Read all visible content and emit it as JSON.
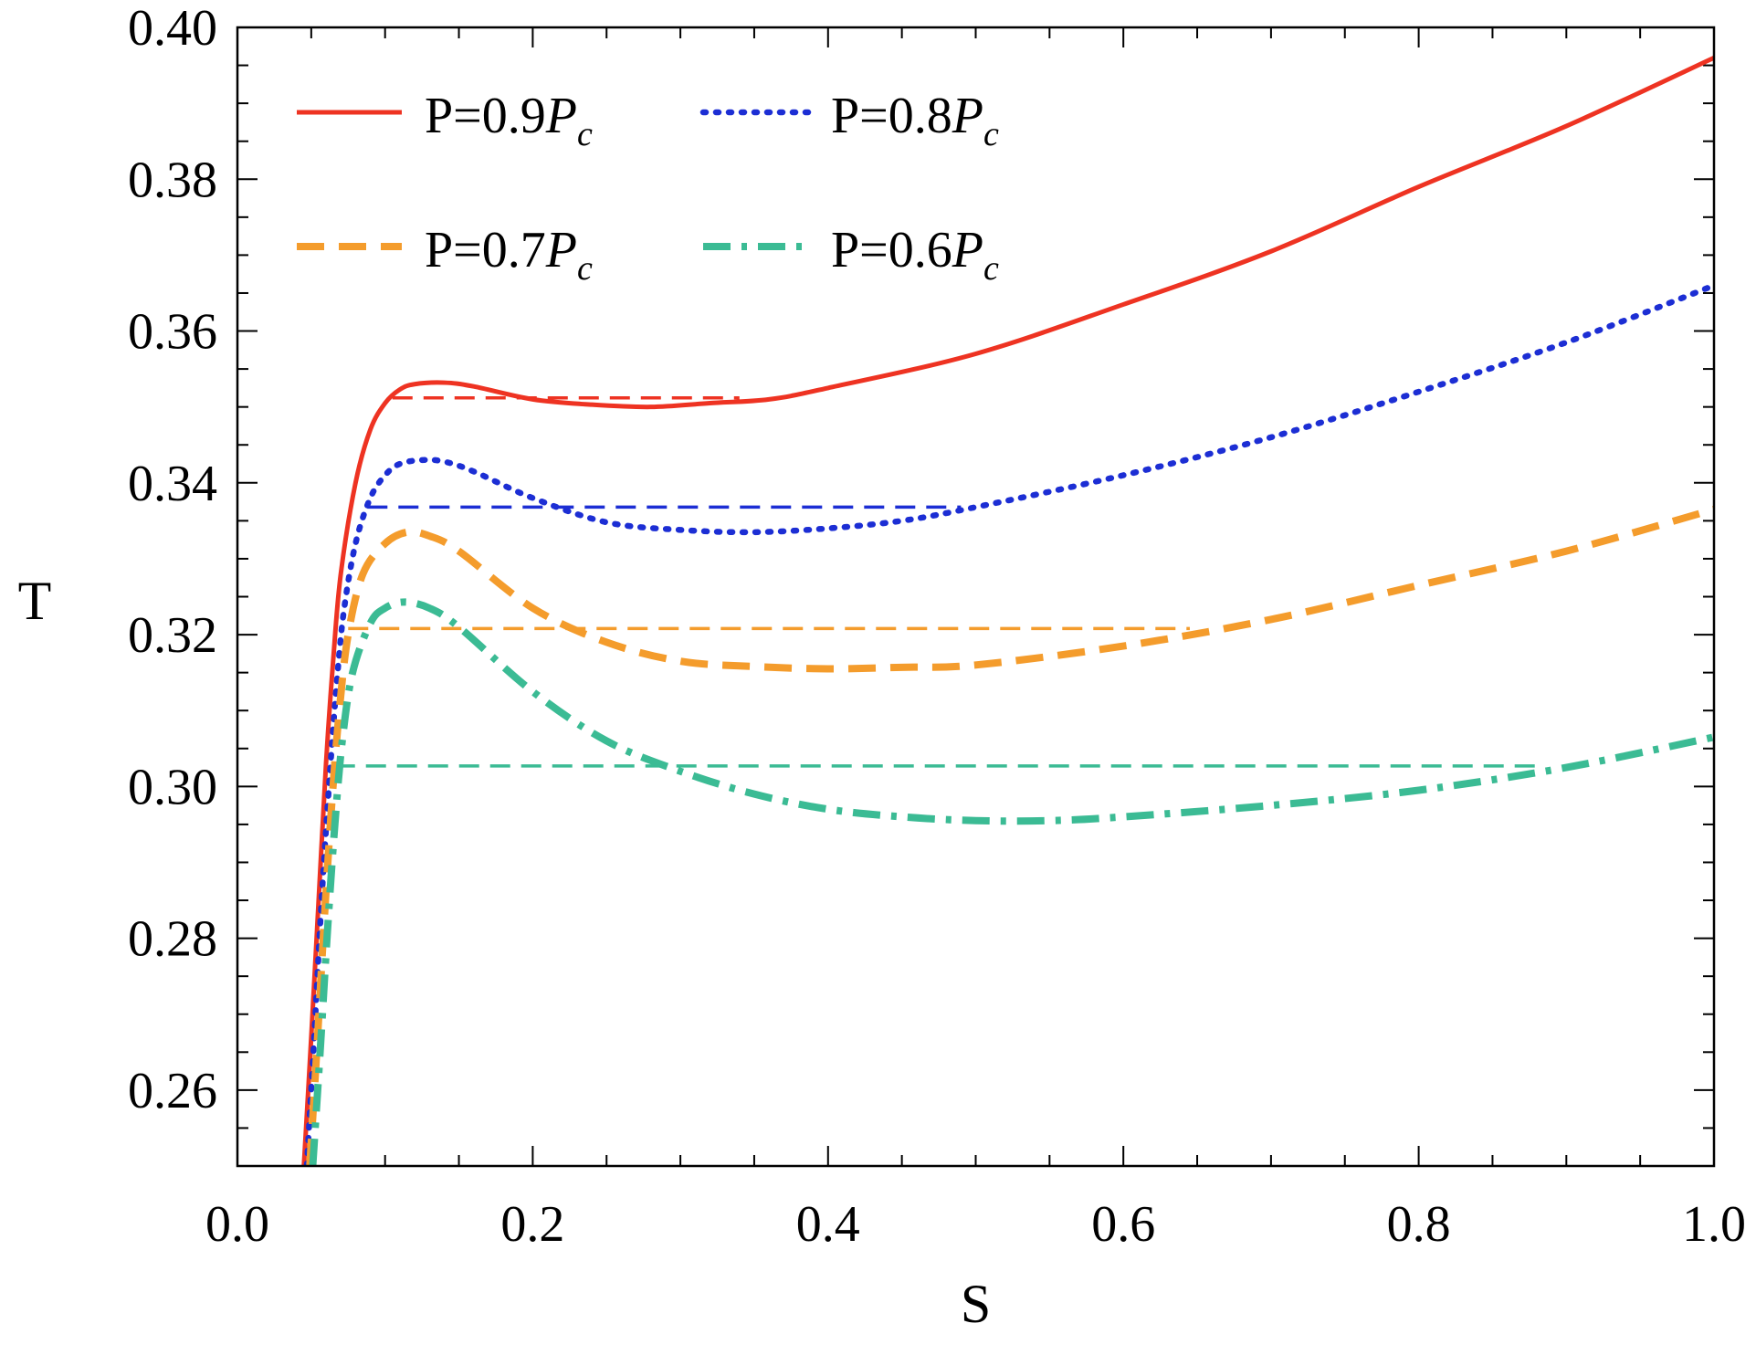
{
  "chart_data": {
    "type": "line",
    "title": "",
    "xlabel": "S",
    "ylabel": "T",
    "xlim": [
      0.0,
      1.0
    ],
    "ylim": [
      0.25,
      0.4
    ],
    "xticks": [
      "0.0",
      "0.2",
      "0.4",
      "0.6",
      "0.8",
      "1.0"
    ],
    "yticks": [
      "0.26",
      "0.28",
      "0.30",
      "0.32",
      "0.34",
      "0.36",
      "0.38",
      "0.40"
    ],
    "legend_position": "top-left",
    "series": [
      {
        "name": "P=0.9P_c",
        "label_main": "P=0.9",
        "label_p": "P",
        "label_sub": "c",
        "color": "#ee3322",
        "style": "solid",
        "x": [
          0.045,
          0.05,
          0.055,
          0.06,
          0.065,
          0.07,
          0.08,
          0.09,
          0.1,
          0.11,
          0.12,
          0.14,
          0.16,
          0.2,
          0.24,
          0.28,
          0.32,
          0.36,
          0.4,
          0.5,
          0.6,
          0.7,
          0.8,
          0.9,
          1.0
        ],
        "y": [
          0.25,
          0.267,
          0.285,
          0.303,
          0.317,
          0.328,
          0.34,
          0.347,
          0.3505,
          0.3523,
          0.353,
          0.3532,
          0.3527,
          0.351,
          0.3503,
          0.35,
          0.3505,
          0.351,
          0.3525,
          0.357,
          0.3635,
          0.3705,
          0.379,
          0.387,
          0.396
        ]
      },
      {
        "name": "P=0.8P_c",
        "label_main": "P=0.8",
        "label_p": "P",
        "label_sub": "c",
        "color": "#1c2ed4",
        "style": "dotted",
        "x": [
          0.047,
          0.052,
          0.057,
          0.062,
          0.067,
          0.072,
          0.08,
          0.09,
          0.1,
          0.11,
          0.125,
          0.14,
          0.16,
          0.2,
          0.25,
          0.3,
          0.35,
          0.4,
          0.45,
          0.5,
          0.6,
          0.7,
          0.8,
          0.9,
          1.0
        ],
        "y": [
          0.25,
          0.267,
          0.285,
          0.3,
          0.313,
          0.323,
          0.332,
          0.338,
          0.341,
          0.3425,
          0.343,
          0.3428,
          0.3415,
          0.338,
          0.3348,
          0.3338,
          0.3335,
          0.334,
          0.335,
          0.3368,
          0.341,
          0.346,
          0.352,
          0.3585,
          0.366
        ]
      },
      {
        "name": "P=0.7P_c",
        "label_main": "P=0.7",
        "label_p": "P",
        "label_sub": "c",
        "color": "#f49c2c",
        "style": "dashed",
        "x": [
          0.049,
          0.054,
          0.059,
          0.064,
          0.069,
          0.075,
          0.085,
          0.1,
          0.115,
          0.13,
          0.15,
          0.2,
          0.25,
          0.3,
          0.35,
          0.4,
          0.45,
          0.5,
          0.6,
          0.7,
          0.8,
          0.9,
          1.0
        ],
        "y": [
          0.25,
          0.266,
          0.283,
          0.298,
          0.31,
          0.32,
          0.328,
          0.332,
          0.3335,
          0.333,
          0.331,
          0.3235,
          0.319,
          0.3165,
          0.3158,
          0.3155,
          0.3157,
          0.316,
          0.3185,
          0.322,
          0.3265,
          0.331,
          0.3365
        ]
      },
      {
        "name": "P=0.6P_c",
        "label_main": "P=0.6",
        "label_p": "P",
        "label_sub": "c",
        "color": "#3bbb94",
        "style": "dashdot",
        "x": [
          0.051,
          0.056,
          0.061,
          0.066,
          0.071,
          0.078,
          0.09,
          0.1,
          0.113,
          0.13,
          0.15,
          0.2,
          0.25,
          0.3,
          0.35,
          0.4,
          0.45,
          0.5,
          0.55,
          0.6,
          0.7,
          0.8,
          0.9,
          1.0
        ],
        "y": [
          0.25,
          0.265,
          0.281,
          0.295,
          0.306,
          0.315,
          0.3215,
          0.3235,
          0.3243,
          0.3235,
          0.321,
          0.3125,
          0.306,
          0.302,
          0.299,
          0.297,
          0.296,
          0.2955,
          0.2955,
          0.296,
          0.2975,
          0.2995,
          0.3025,
          0.3065
        ]
      }
    ],
    "isobars": [
      {
        "series": "P=0.9P_c",
        "y": 0.3512,
        "x_start": 0.105,
        "x_end": 0.34,
        "color": "#ee3322"
      },
      {
        "series": "P=0.8P_c",
        "y": 0.3368,
        "x_start": 0.088,
        "x_end": 0.49,
        "color": "#1c2ed4"
      },
      {
        "series": "P=0.7P_c",
        "y": 0.3208,
        "x_start": 0.075,
        "x_end": 0.645,
        "color": "#f49c2c"
      },
      {
        "series": "P=0.6P_c",
        "y": 0.3027,
        "x_start": 0.066,
        "x_end": 0.885,
        "color": "#3bbb94"
      }
    ]
  }
}
